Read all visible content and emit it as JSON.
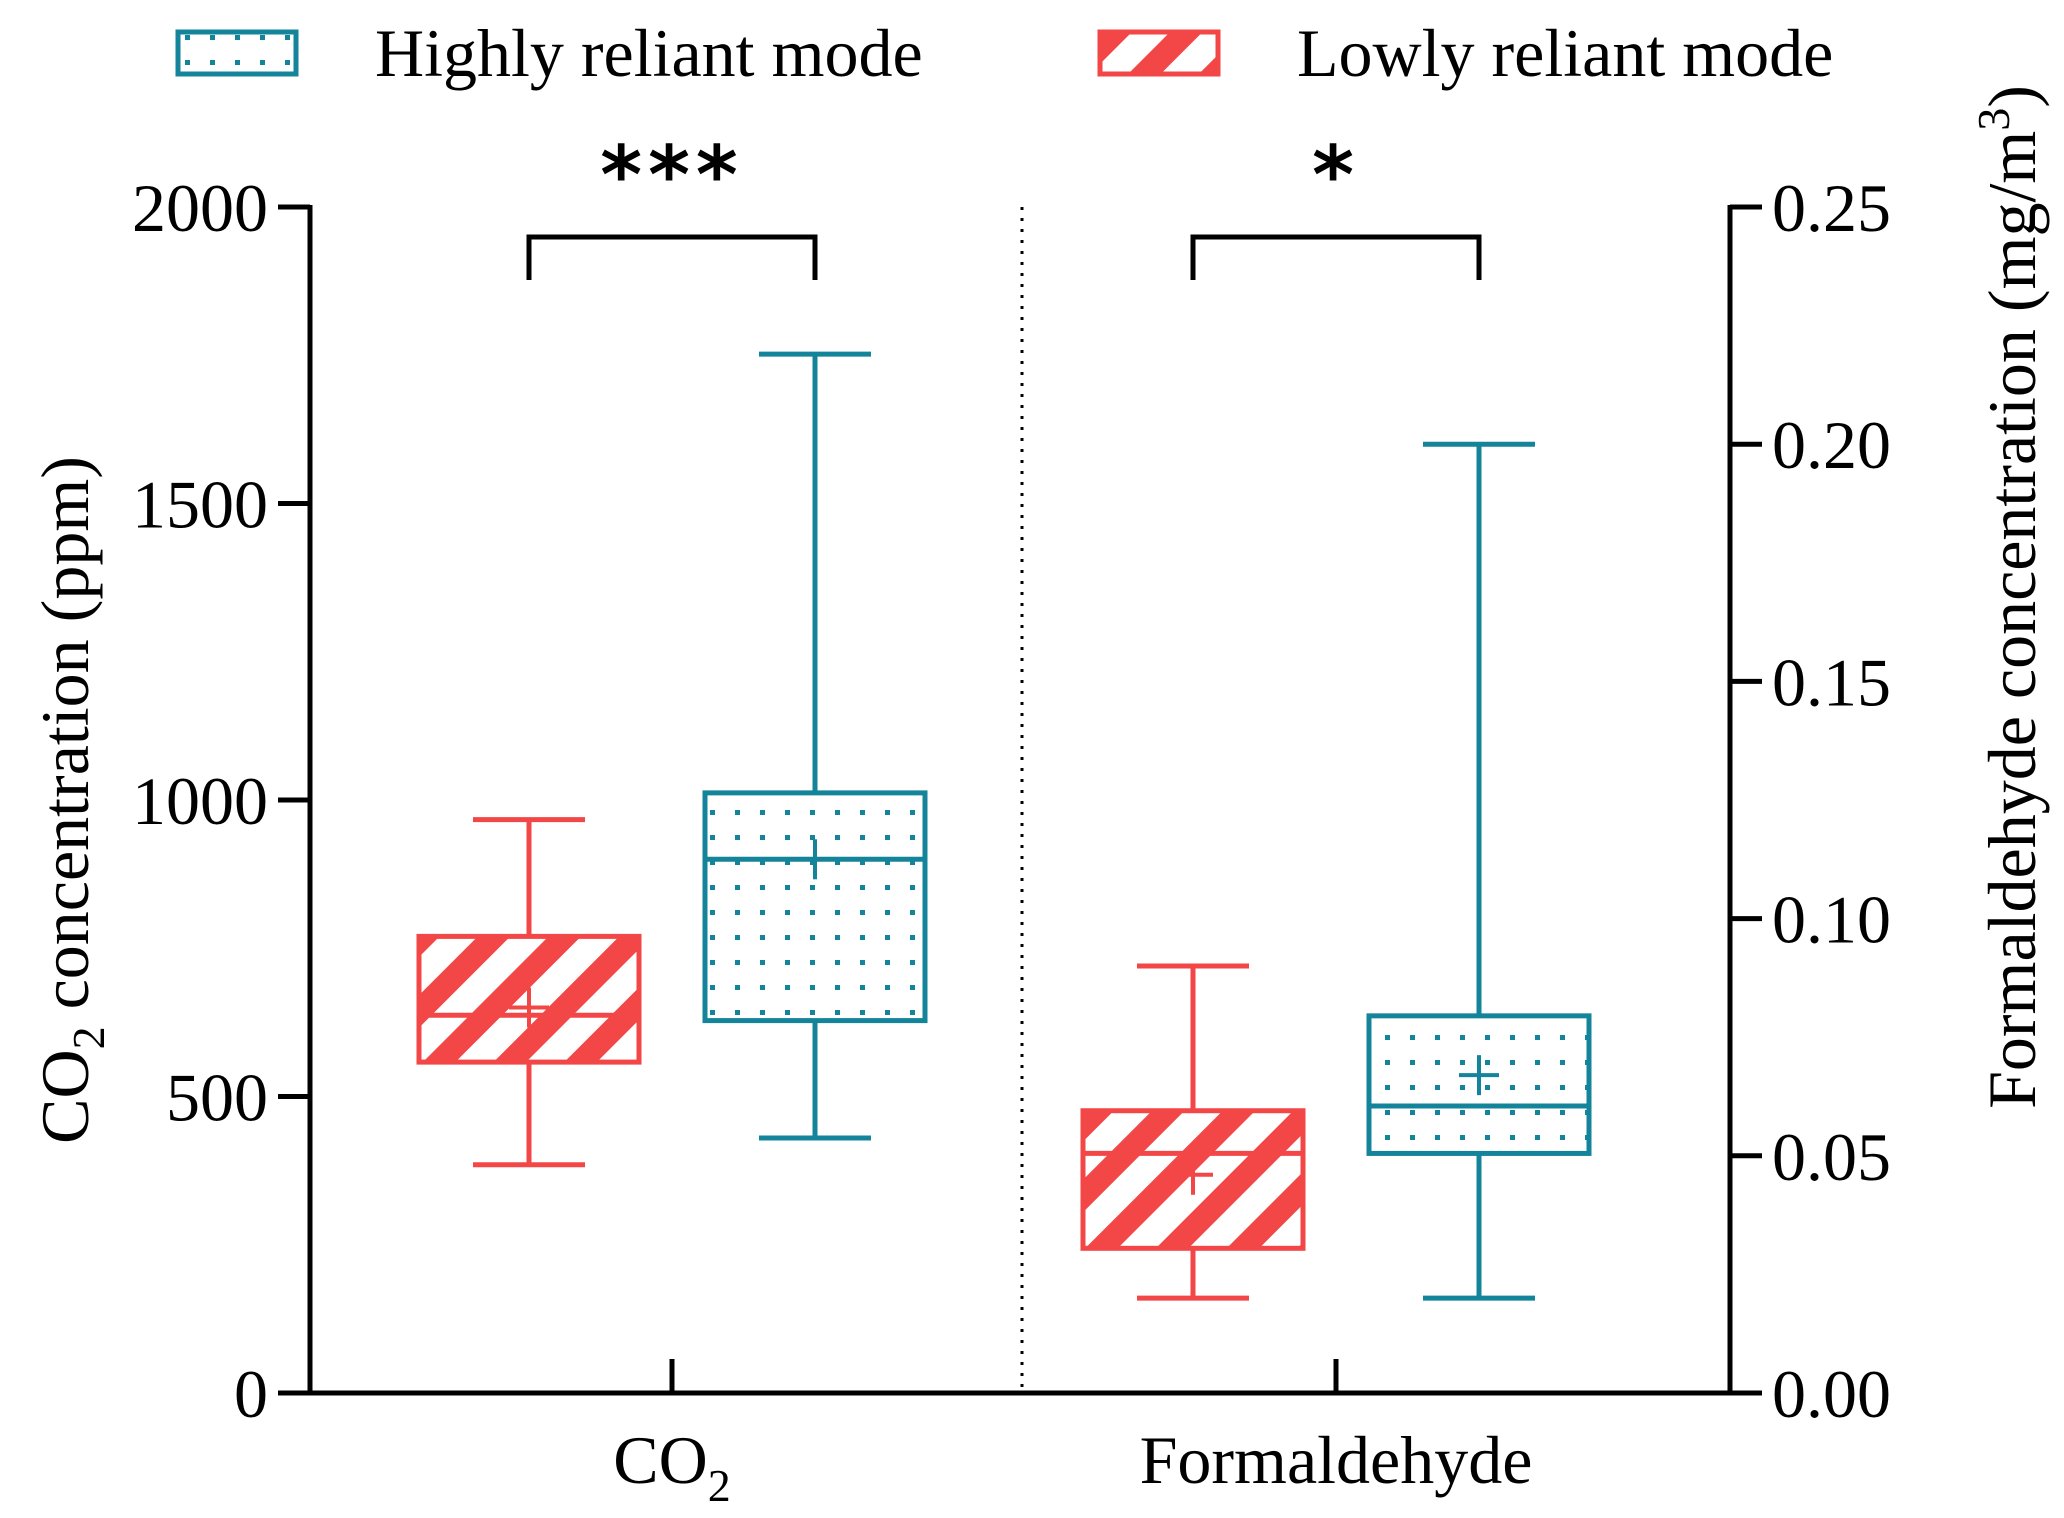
{
  "chart_data": {
    "type": "boxplot",
    "title": "",
    "categories": [
      "CO",
      "Formaldehyde"
    ],
    "category_subscripts": [
      "2",
      ""
    ],
    "colors": {
      "high": "#13849a",
      "low": "#f34646",
      "axis": "#000000"
    },
    "legend": {
      "placement": "top",
      "entries": [
        {
          "key": "high",
          "label": "Highly reliant mode",
          "pattern": "dots"
        },
        {
          "key": "low",
          "label": "Lowly reliant mode",
          "pattern": "stripes"
        }
      ]
    },
    "left_axis": {
      "label_prefix": "CO",
      "label_sub": "2",
      "label_suffix": " concentration (ppm)",
      "ylim": [
        0,
        2000
      ],
      "ticks": [
        0,
        500,
        1000,
        1500,
        2000
      ],
      "tick_labels": [
        "0",
        "500",
        "1000",
        "1500",
        "2000"
      ]
    },
    "right_axis": {
      "label_prefix": "Formaldehyde concentration (mg/m",
      "label_sup": "3",
      "label_suffix": ")",
      "ylim": [
        0,
        0.25
      ],
      "ticks": [
        0,
        0.05,
        0.1,
        0.15,
        0.2,
        0.25
      ],
      "tick_labels": [
        "0.00",
        "0.05",
        "0.10",
        "0.15",
        "0.20",
        "0.25"
      ]
    },
    "groups": [
      {
        "name": "CO2",
        "axis": "left",
        "significance": "***",
        "boxes": [
          {
            "series": "low",
            "min": 385,
            "q1": 558,
            "median": 637,
            "q3": 770,
            "max": 967,
            "mean": 650
          },
          {
            "series": "high",
            "min": 430,
            "q1": 628,
            "median": 900,
            "q3": 1012,
            "max": 1752,
            "mean": 900
          }
        ]
      },
      {
        "name": "Formaldehyde",
        "axis": "right",
        "significance": "*",
        "boxes": [
          {
            "series": "low",
            "min": 0.02,
            "q1": 0.0305,
            "median": 0.0505,
            "q3": 0.0595,
            "max": 0.09,
            "mean": 0.046
          },
          {
            "series": "high",
            "min": 0.02,
            "q1": 0.0505,
            "median": 0.0605,
            "q3": 0.0795,
            "max": 0.2,
            "mean": 0.067
          }
        ]
      }
    ]
  }
}
